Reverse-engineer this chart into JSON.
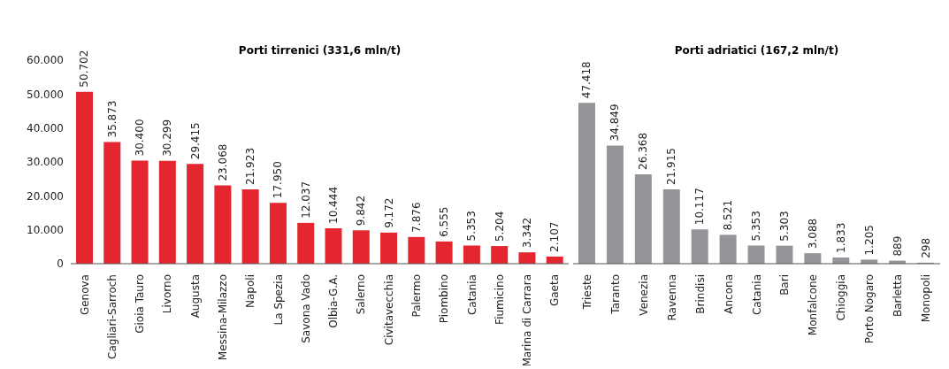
{
  "chart_data": [
    {
      "type": "bar",
      "title": "Porti tirrenici (331,6 mln/t)",
      "categories": [
        "Genova",
        "Cagliari-Sarroch",
        "Gioia Tauro",
        "Livorno",
        "Augusta",
        "Messina-Milazzo",
        "Napoli",
        "La Spezia",
        "Savona Vado",
        "Olbia-G.A.",
        "Salerno",
        "Civitavecchia",
        "Palermo",
        "Piombino",
        "Catania",
        "Fiumicino",
        "Marina di Carrara",
        "Gaeta"
      ],
      "values": [
        50702,
        35873,
        30400,
        30299,
        29415,
        23068,
        21923,
        17950,
        12037,
        10444,
        9842,
        9172,
        7876,
        6555,
        5353,
        5204,
        3342,
        2107
      ],
      "value_labels": [
        "50.702",
        "35.873",
        "30.400",
        "30.299",
        "29.415",
        "23.068",
        "21.923",
        "17.950",
        "12.037",
        "10.444",
        "9.842",
        "9.172",
        "7.876",
        "6.555",
        "5.353",
        "5.204",
        "3.342",
        "2.107"
      ],
      "color": "#e3262f",
      "ylim": [
        0,
        60000
      ],
      "yticks": [
        {
          "value": 0,
          "label": "0"
        },
        {
          "value": 10000,
          "label": "10.000"
        },
        {
          "value": 20000,
          "label": "20.000"
        },
        {
          "value": 30000,
          "label": "30.000"
        },
        {
          "value": 40000,
          "label": "40.000"
        },
        {
          "value": 50000,
          "label": "50.000"
        },
        {
          "value": 60000,
          "label": "60.000"
        }
      ],
      "grid": false
    },
    {
      "type": "bar",
      "title": "Porti adriatici (167,2 mln/t)",
      "categories": [
        "Trieste",
        "Taranto",
        "Venezia",
        "Ravenna",
        "Brindisi",
        "Ancona",
        "Catania",
        "Bari",
        "Monfalcone",
        "Chioggia",
        "Porto Nogaro",
        "Barletta",
        "Monopoli"
      ],
      "values": [
        47418,
        34849,
        26368,
        21915,
        10117,
        8521,
        5353,
        5303,
        3088,
        1833,
        1205,
        889,
        298
      ],
      "value_labels": [
        "47.418",
        "34.849",
        "26.368",
        "21.915",
        "10.117",
        "8.521",
        "5.353",
        "5.303",
        "3.088",
        "1.833",
        "1.205",
        "889",
        "298"
      ],
      "color": "#939598",
      "ylim": [
        0,
        60000
      ],
      "tick_labels": "x",
      "grid": false
    }
  ]
}
